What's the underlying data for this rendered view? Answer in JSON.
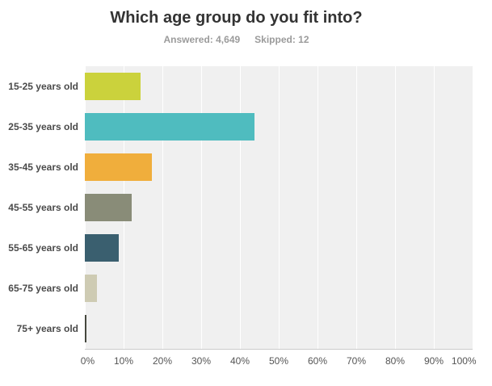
{
  "header": {
    "title": "Which age group do you fit into?",
    "answered_label": "Answered: 4,649",
    "skipped_label": "Skipped: 12"
  },
  "chart_data": {
    "type": "bar",
    "orientation": "horizontal",
    "title": "Which age group do you fit into?",
    "subtitle": "Answered: 4,649  Skipped: 12",
    "categories": [
      "15-25 years old",
      "25-35 years old",
      "35-45 years old",
      "45-55 years old",
      "55-65 years old",
      "65-75 years old",
      "75+ years old"
    ],
    "values": [
      14.4,
      43.7,
      17.2,
      12.0,
      8.8,
      3.2,
      0.5
    ],
    "bar_colors": [
      "#cbd23c",
      "#4fbcbf",
      "#f0ae3c",
      "#898c78",
      "#3a5f6f",
      "#cecbb3",
      "#45483e"
    ],
    "xlabel": "",
    "ylabel": "",
    "x_ticks": [
      "0%",
      "10%",
      "20%",
      "30%",
      "40%",
      "50%",
      "60%",
      "70%",
      "80%",
      "90%",
      "100%"
    ],
    "xlim": [
      0,
      100
    ],
    "grid": true,
    "legend": false,
    "plot_bg": "#f0f0f0",
    "gridline_color": "#ffffff",
    "axis_line_color": "#cccccc",
    "title_color": "#333333",
    "subtitle_color": "#9b9b9b",
    "category_label_color": "#4a4a4a",
    "tick_label_color": "#555555"
  }
}
